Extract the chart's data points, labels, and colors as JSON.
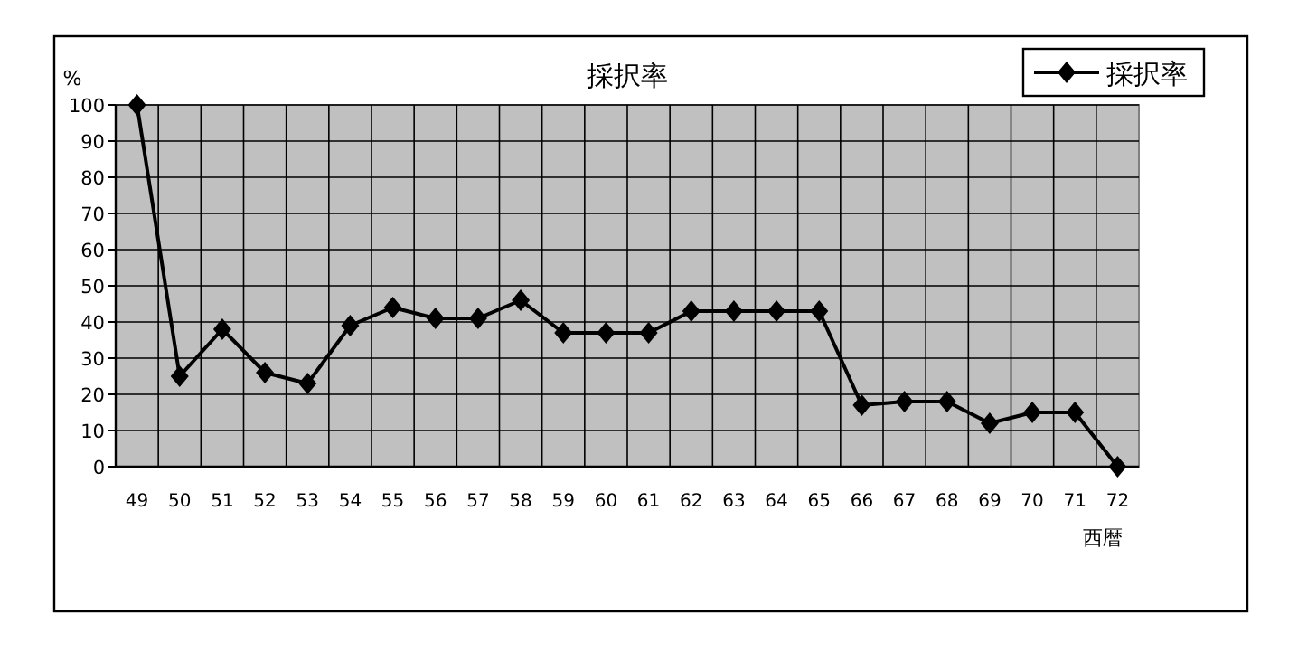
{
  "chart_data": {
    "type": "line",
    "title": "採択率",
    "xlabel": "西暦",
    "ylabel": "%",
    "categories": [
      "49",
      "50",
      "51",
      "52",
      "53",
      "54",
      "55",
      "56",
      "57",
      "58",
      "59",
      "60",
      "61",
      "62",
      "63",
      "64",
      "65",
      "66",
      "67",
      "68",
      "69",
      "70",
      "71",
      "72"
    ],
    "series": [
      {
        "name": "採択率",
        "color": "#000000",
        "values": [
          100,
          25,
          38,
          26,
          23,
          39,
          44,
          41,
          41,
          46,
          37,
          37,
          37,
          43,
          43,
          43,
          43,
          17,
          18,
          18,
          12,
          15,
          15,
          0
        ]
      }
    ],
    "ylim": [
      0,
      100
    ],
    "yticks": [
      0,
      10,
      20,
      30,
      40,
      50,
      60,
      70,
      80,
      90,
      100
    ],
    "grid": true,
    "legend": "top right",
    "marker": "diamond",
    "line_style": "solid"
  }
}
